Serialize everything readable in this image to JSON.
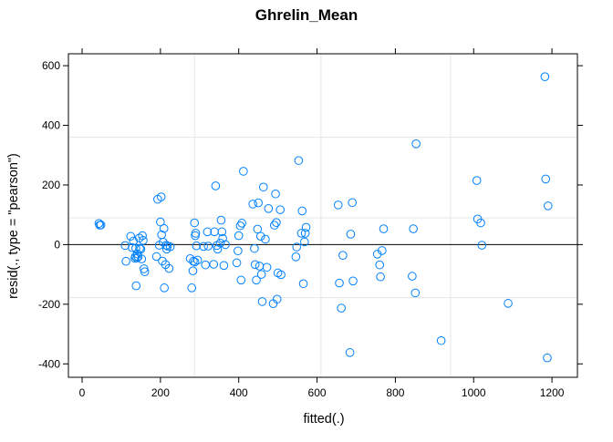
{
  "chart_data": {
    "type": "scatter",
    "title": "Ghrelin_Mean",
    "xlabel": "fitted(.)",
    "ylabel": "resid(., type = \"pearson\")",
    "xlim": [
      -35,
      1265
    ],
    "ylim": [
      -445,
      640
    ],
    "x_ticks": [
      0,
      200,
      400,
      600,
      800,
      1000,
      1200
    ],
    "x_tick_labels": [
      "0",
      "200",
      "400",
      "600",
      "800",
      "1000",
      "1200"
    ],
    "y_ticks": [
      -400,
      -200,
      0,
      200,
      400,
      600
    ],
    "y_tick_labels": [
      "-400",
      "-200",
      "0",
      "200",
      "400",
      "600"
    ],
    "grid": true,
    "grid_x": [
      287,
      610,
      941
    ],
    "grid_y": [
      -178,
      90,
      360
    ],
    "reference_line_y": 0,
    "colors": {
      "points": "#0080ff",
      "grid": "#e6e6e6",
      "zero_line": "#000000"
    },
    "points": [
      [
        43,
        71
      ],
      [
        45,
        65
      ],
      [
        48,
        66
      ],
      [
        110,
        -3
      ],
      [
        112,
        -56
      ],
      [
        124,
        28
      ],
      [
        128,
        -10
      ],
      [
        131,
        12
      ],
      [
        135,
        -46
      ],
      [
        136,
        -40
      ],
      [
        137,
        -12
      ],
      [
        138,
        -138
      ],
      [
        140,
        -45
      ],
      [
        141,
        -31
      ],
      [
        143,
        -41
      ],
      [
        146,
        22
      ],
      [
        147,
        -13
      ],
      [
        150,
        -15
      ],
      [
        152,
        -48
      ],
      [
        154,
        30
      ],
      [
        156,
        14
      ],
      [
        158,
        -81
      ],
      [
        160,
        -91
      ],
      [
        190,
        -40
      ],
      [
        193,
        152
      ],
      [
        197,
        -2
      ],
      [
        200,
        76
      ],
      [
        202,
        160
      ],
      [
        203,
        33
      ],
      [
        205,
        -55
      ],
      [
        207,
        8
      ],
      [
        209,
        54
      ],
      [
        210,
        -145
      ],
      [
        213,
        -67
      ],
      [
        215,
        -2
      ],
      [
        216,
        -15
      ],
      [
        218,
        -5
      ],
      [
        222,
        -80
      ],
      [
        225,
        -7
      ],
      [
        276,
        -47
      ],
      [
        280,
        -145
      ],
      [
        283,
        -88
      ],
      [
        284,
        -56
      ],
      [
        287,
        73
      ],
      [
        288,
        -58
      ],
      [
        289,
        30
      ],
      [
        290,
        38
      ],
      [
        292,
        -4
      ],
      [
        295,
        -52
      ],
      [
        310,
        -6
      ],
      [
        315,
        -68
      ],
      [
        320,
        43
      ],
      [
        322,
        -5
      ],
      [
        336,
        -66
      ],
      [
        338,
        43
      ],
      [
        341,
        197
      ],
      [
        344,
        -3
      ],
      [
        346,
        -15
      ],
      [
        353,
        5
      ],
      [
        355,
        82
      ],
      [
        357,
        43
      ],
      [
        359,
        21
      ],
      [
        362,
        -70
      ],
      [
        366,
        0
      ],
      [
        395,
        -61
      ],
      [
        398,
        -21
      ],
      [
        400,
        30
      ],
      [
        404,
        63
      ],
      [
        406,
        -119
      ],
      [
        408,
        72
      ],
      [
        412,
        246
      ],
      [
        436,
        136
      ],
      [
        440,
        -13
      ],
      [
        442,
        -67
      ],
      [
        445,
        -119
      ],
      [
        448,
        52
      ],
      [
        450,
        140
      ],
      [
        453,
        -72
      ],
      [
        456,
        28
      ],
      [
        458,
        -100
      ],
      [
        460,
        -191
      ],
      [
        463,
        193
      ],
      [
        468,
        18
      ],
      [
        472,
        -76
      ],
      [
        476,
        121
      ],
      [
        488,
        -198
      ],
      [
        491,
        65
      ],
      [
        494,
        170
      ],
      [
        496,
        74
      ],
      [
        498,
        -183
      ],
      [
        500,
        -95
      ],
      [
        506,
        117
      ],
      [
        508,
        -101
      ],
      [
        546,
        -41
      ],
      [
        548,
        -8
      ],
      [
        553,
        282
      ],
      [
        560,
        38
      ],
      [
        562,
        113
      ],
      [
        565,
        -131
      ],
      [
        568,
        9
      ],
      [
        570,
        38
      ],
      [
        572,
        58
      ],
      [
        654,
        133
      ],
      [
        657,
        -129
      ],
      [
        662,
        -213
      ],
      [
        666,
        -36
      ],
      [
        684,
        -362
      ],
      [
        686,
        35
      ],
      [
        690,
        141
      ],
      [
        692,
        -122
      ],
      [
        754,
        -32
      ],
      [
        760,
        -68
      ],
      [
        762,
        -108
      ],
      [
        766,
        -20
      ],
      [
        770,
        53
      ],
      [
        843,
        -106
      ],
      [
        846,
        53
      ],
      [
        851,
        -162
      ],
      [
        853,
        338
      ],
      [
        917,
        -322
      ],
      [
        1008,
        215
      ],
      [
        1010,
        86
      ],
      [
        1018,
        73
      ],
      [
        1021,
        -2
      ],
      [
        1088,
        -197
      ],
      [
        1182,
        563
      ],
      [
        1184,
        220
      ],
      [
        1188,
        -380
      ],
      [
        1190,
        130
      ]
    ]
  }
}
